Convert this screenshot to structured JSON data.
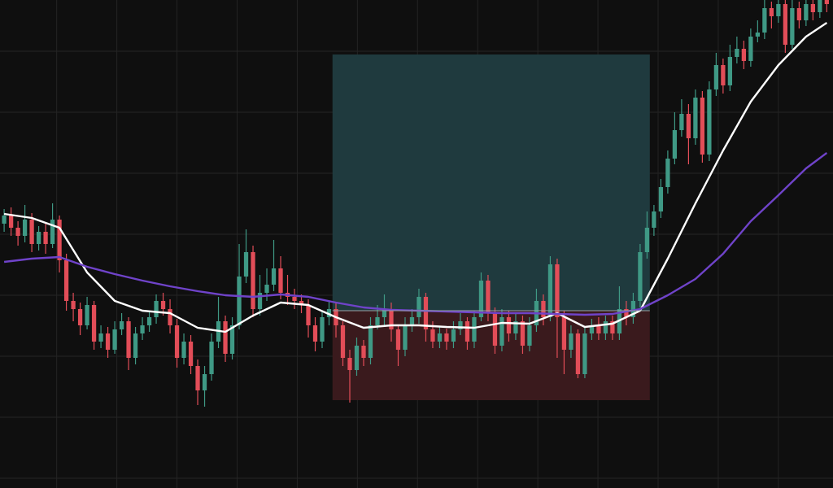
{
  "chart_data": {
    "type": "candlestick",
    "categories": [
      null,
      null,
      null,
      null,
      null,
      null,
      null,
      null,
      null,
      null,
      null,
      null,
      null,
      null,
      null,
      null,
      null,
      null,
      null,
      null,
      null,
      null,
      null,
      null,
      null,
      null,
      null,
      null,
      null,
      null,
      null,
      null,
      null,
      null,
      null,
      null,
      null,
      null,
      null,
      null,
      null,
      null,
      null,
      null,
      null,
      null,
      null,
      null,
      null,
      null,
      null,
      null,
      null,
      null,
      null,
      null,
      null,
      null,
      null,
      null,
      null,
      null,
      null,
      null,
      null,
      null,
      null,
      null,
      null,
      null,
      null,
      null,
      null,
      null,
      null,
      null,
      null,
      null,
      null,
      null,
      null,
      null,
      null,
      null,
      null,
      null,
      null,
      null,
      null,
      null,
      null,
      null,
      null,
      null,
      null,
      null,
      null,
      null,
      null,
      null,
      null,
      null,
      null,
      null,
      null,
      null,
      null,
      null,
      null,
      null,
      null,
      null,
      null,
      null,
      null,
      null,
      null,
      null,
      null,
      null
    ],
    "open": [
      325,
      335,
      320,
      310,
      330,
      300,
      315,
      300,
      330,
      280,
      230,
      220,
      200,
      225,
      180,
      190,
      170,
      195,
      205,
      160,
      190,
      200,
      210,
      230,
      220,
      200,
      160,
      180,
      150,
      120,
      140,
      180,
      205,
      165,
      200,
      260,
      290,
      220,
      240,
      250,
      270,
      240,
      235,
      230,
      225,
      200,
      180,
      210,
      220,
      200,
      160,
      145,
      175,
      160,
      200,
      210,
      220,
      195,
      170,
      200,
      210,
      235,
      195,
      180,
      190,
      180,
      195,
      205,
      180,
      210,
      255,
      215,
      175,
      210,
      190,
      205,
      175,
      200,
      230,
      210,
      275,
      210,
      170,
      190,
      140,
      190,
      200,
      190,
      205,
      190,
      220,
      210,
      230,
      290,
      320,
      340,
      370,
      405,
      440,
      460,
      430,
      480,
      410,
      490,
      520,
      495,
      530,
      540,
      525,
      555,
      560,
      590,
      580,
      595,
      545,
      590,
      575,
      595,
      585,
      600
    ],
    "high": [
      343,
      345,
      328,
      348,
      338,
      322,
      325,
      350,
      335,
      288,
      240,
      228,
      235,
      230,
      200,
      198,
      205,
      215,
      210,
      198,
      210,
      218,
      238,
      240,
      232,
      208,
      190,
      188,
      158,
      150,
      190,
      235,
      212,
      210,
      300,
      318,
      298,
      262,
      270,
      305,
      285,
      262,
      245,
      238,
      232,
      210,
      218,
      230,
      228,
      205,
      170,
      185,
      182,
      210,
      225,
      238,
      228,
      200,
      210,
      220,
      245,
      240,
      205,
      198,
      196,
      205,
      215,
      210,
      218,
      265,
      262,
      222,
      220,
      218,
      215,
      212,
      210,
      245,
      238,
      285,
      282,
      218,
      200,
      195,
      198,
      208,
      210,
      212,
      212,
      248,
      230,
      240,
      300,
      340,
      348,
      380,
      415,
      462,
      478,
      472,
      490,
      488,
      500,
      535,
      528,
      545,
      555,
      550,
      565,
      575,
      605,
      598,
      610,
      602,
      605,
      598,
      610,
      608,
      612,
      612
    ],
    "low": [
      315,
      310,
      298,
      302,
      290,
      292,
      288,
      295,
      265,
      218,
      205,
      188,
      195,
      170,
      172,
      160,
      165,
      188,
      145,
      152,
      182,
      192,
      202,
      212,
      190,
      148,
      152,
      140,
      102,
      100,
      132,
      172,
      155,
      158,
      195,
      252,
      210,
      212,
      230,
      242,
      232,
      225,
      220,
      215,
      185,
      168,
      172,
      200,
      185,
      150,
      105,
      138,
      150,
      152,
      195,
      200,
      180,
      150,
      162,
      192,
      202,
      180,
      172,
      172,
      170,
      172,
      188,
      170,
      172,
      205,
      205,
      165,
      168,
      180,
      182,
      165,
      168,
      192,
      200,
      205,
      160,
      140,
      160,
      135,
      135,
      182,
      182,
      182,
      182,
      182,
      200,
      202,
      222,
      282,
      310,
      332,
      362,
      398,
      432,
      398,
      422,
      400,
      402,
      482,
      485,
      488,
      522,
      515,
      518,
      548,
      552,
      565,
      572,
      535,
      540,
      565,
      568,
      575,
      578,
      585
    ],
    "close": [
      335,
      320,
      310,
      330,
      300,
      315,
      300,
      330,
      280,
      230,
      220,
      200,
      225,
      180,
      190,
      170,
      195,
      205,
      160,
      190,
      200,
      210,
      230,
      220,
      200,
      160,
      180,
      150,
      120,
      140,
      180,
      205,
      165,
      200,
      260,
      290,
      220,
      240,
      250,
      270,
      240,
      235,
      230,
      225,
      200,
      180,
      210,
      220,
      200,
      160,
      145,
      175,
      160,
      200,
      210,
      220,
      195,
      170,
      200,
      210,
      235,
      195,
      180,
      190,
      180,
      195,
      205,
      180,
      210,
      255,
      215,
      175,
      210,
      190,
      205,
      175,
      200,
      230,
      210,
      275,
      210,
      170,
      190,
      140,
      190,
      200,
      190,
      205,
      190,
      220,
      210,
      230,
      290,
      320,
      340,
      370,
      405,
      440,
      460,
      430,
      480,
      410,
      490,
      520,
      495,
      530,
      540,
      525,
      555,
      560,
      590,
      580,
      595,
      545,
      590,
      575,
      595,
      585,
      600,
      595
    ],
    "up_color": "#3f9985",
    "down_color": "#e24d58",
    "overlays": [
      {
        "color": "#ffffff",
        "x": [
          0,
          4,
          8,
          12,
          16,
          20,
          24,
          28,
          32,
          36,
          40,
          44,
          48,
          52,
          56,
          60,
          64,
          68,
          72,
          76,
          80,
          84,
          88,
          92,
          96,
          100,
          104,
          108,
          112,
          116,
          119
        ],
        "values": [
          337,
          332,
          320,
          265,
          230,
          218,
          215,
          197,
          192,
          212,
          228,
          225,
          210,
          197,
          200,
          200,
          198,
          197,
          203,
          202,
          215,
          198,
          202,
          218,
          282,
          350,
          415,
          475,
          520,
          555,
          572
        ]
      },
      {
        "color": "#6f43c9",
        "x": [
          0,
          4,
          8,
          12,
          16,
          20,
          24,
          28,
          32,
          36,
          40,
          44,
          48,
          52,
          56,
          60,
          64,
          68,
          72,
          76,
          80,
          84,
          88,
          92,
          96,
          100,
          104,
          108,
          112,
          116,
          119
        ],
        "values": [
          278,
          282,
          284,
          272,
          263,
          255,
          248,
          242,
          237,
          235,
          238,
          235,
          228,
          222,
          219,
          218,
          217,
          216,
          215,
          215,
          214,
          213,
          214,
          220,
          237,
          257,
          288,
          328,
          360,
          393,
          412
        ]
      }
    ],
    "position": {
      "x_start": 47.5,
      "x_end": 93.4,
      "entry": 218,
      "target": 533,
      "stop": 108,
      "target_color": "#1f3a3e",
      "stop_color": "#3a1a1d",
      "entry_color": "#9aa3a8"
    },
    "xlim": [
      -0.6,
      119.9
    ],
    "ylim": [
      0,
      600
    ],
    "xticks": [
      7.6,
      16.3,
      25,
      33.7,
      42.4,
      51.1,
      59.8,
      68.5,
      77.2,
      85.9,
      94.6,
      103.3,
      112
    ],
    "yticks": [
      12,
      87,
      162,
      237,
      312,
      387,
      462,
      537
    ],
    "grid": true
  }
}
